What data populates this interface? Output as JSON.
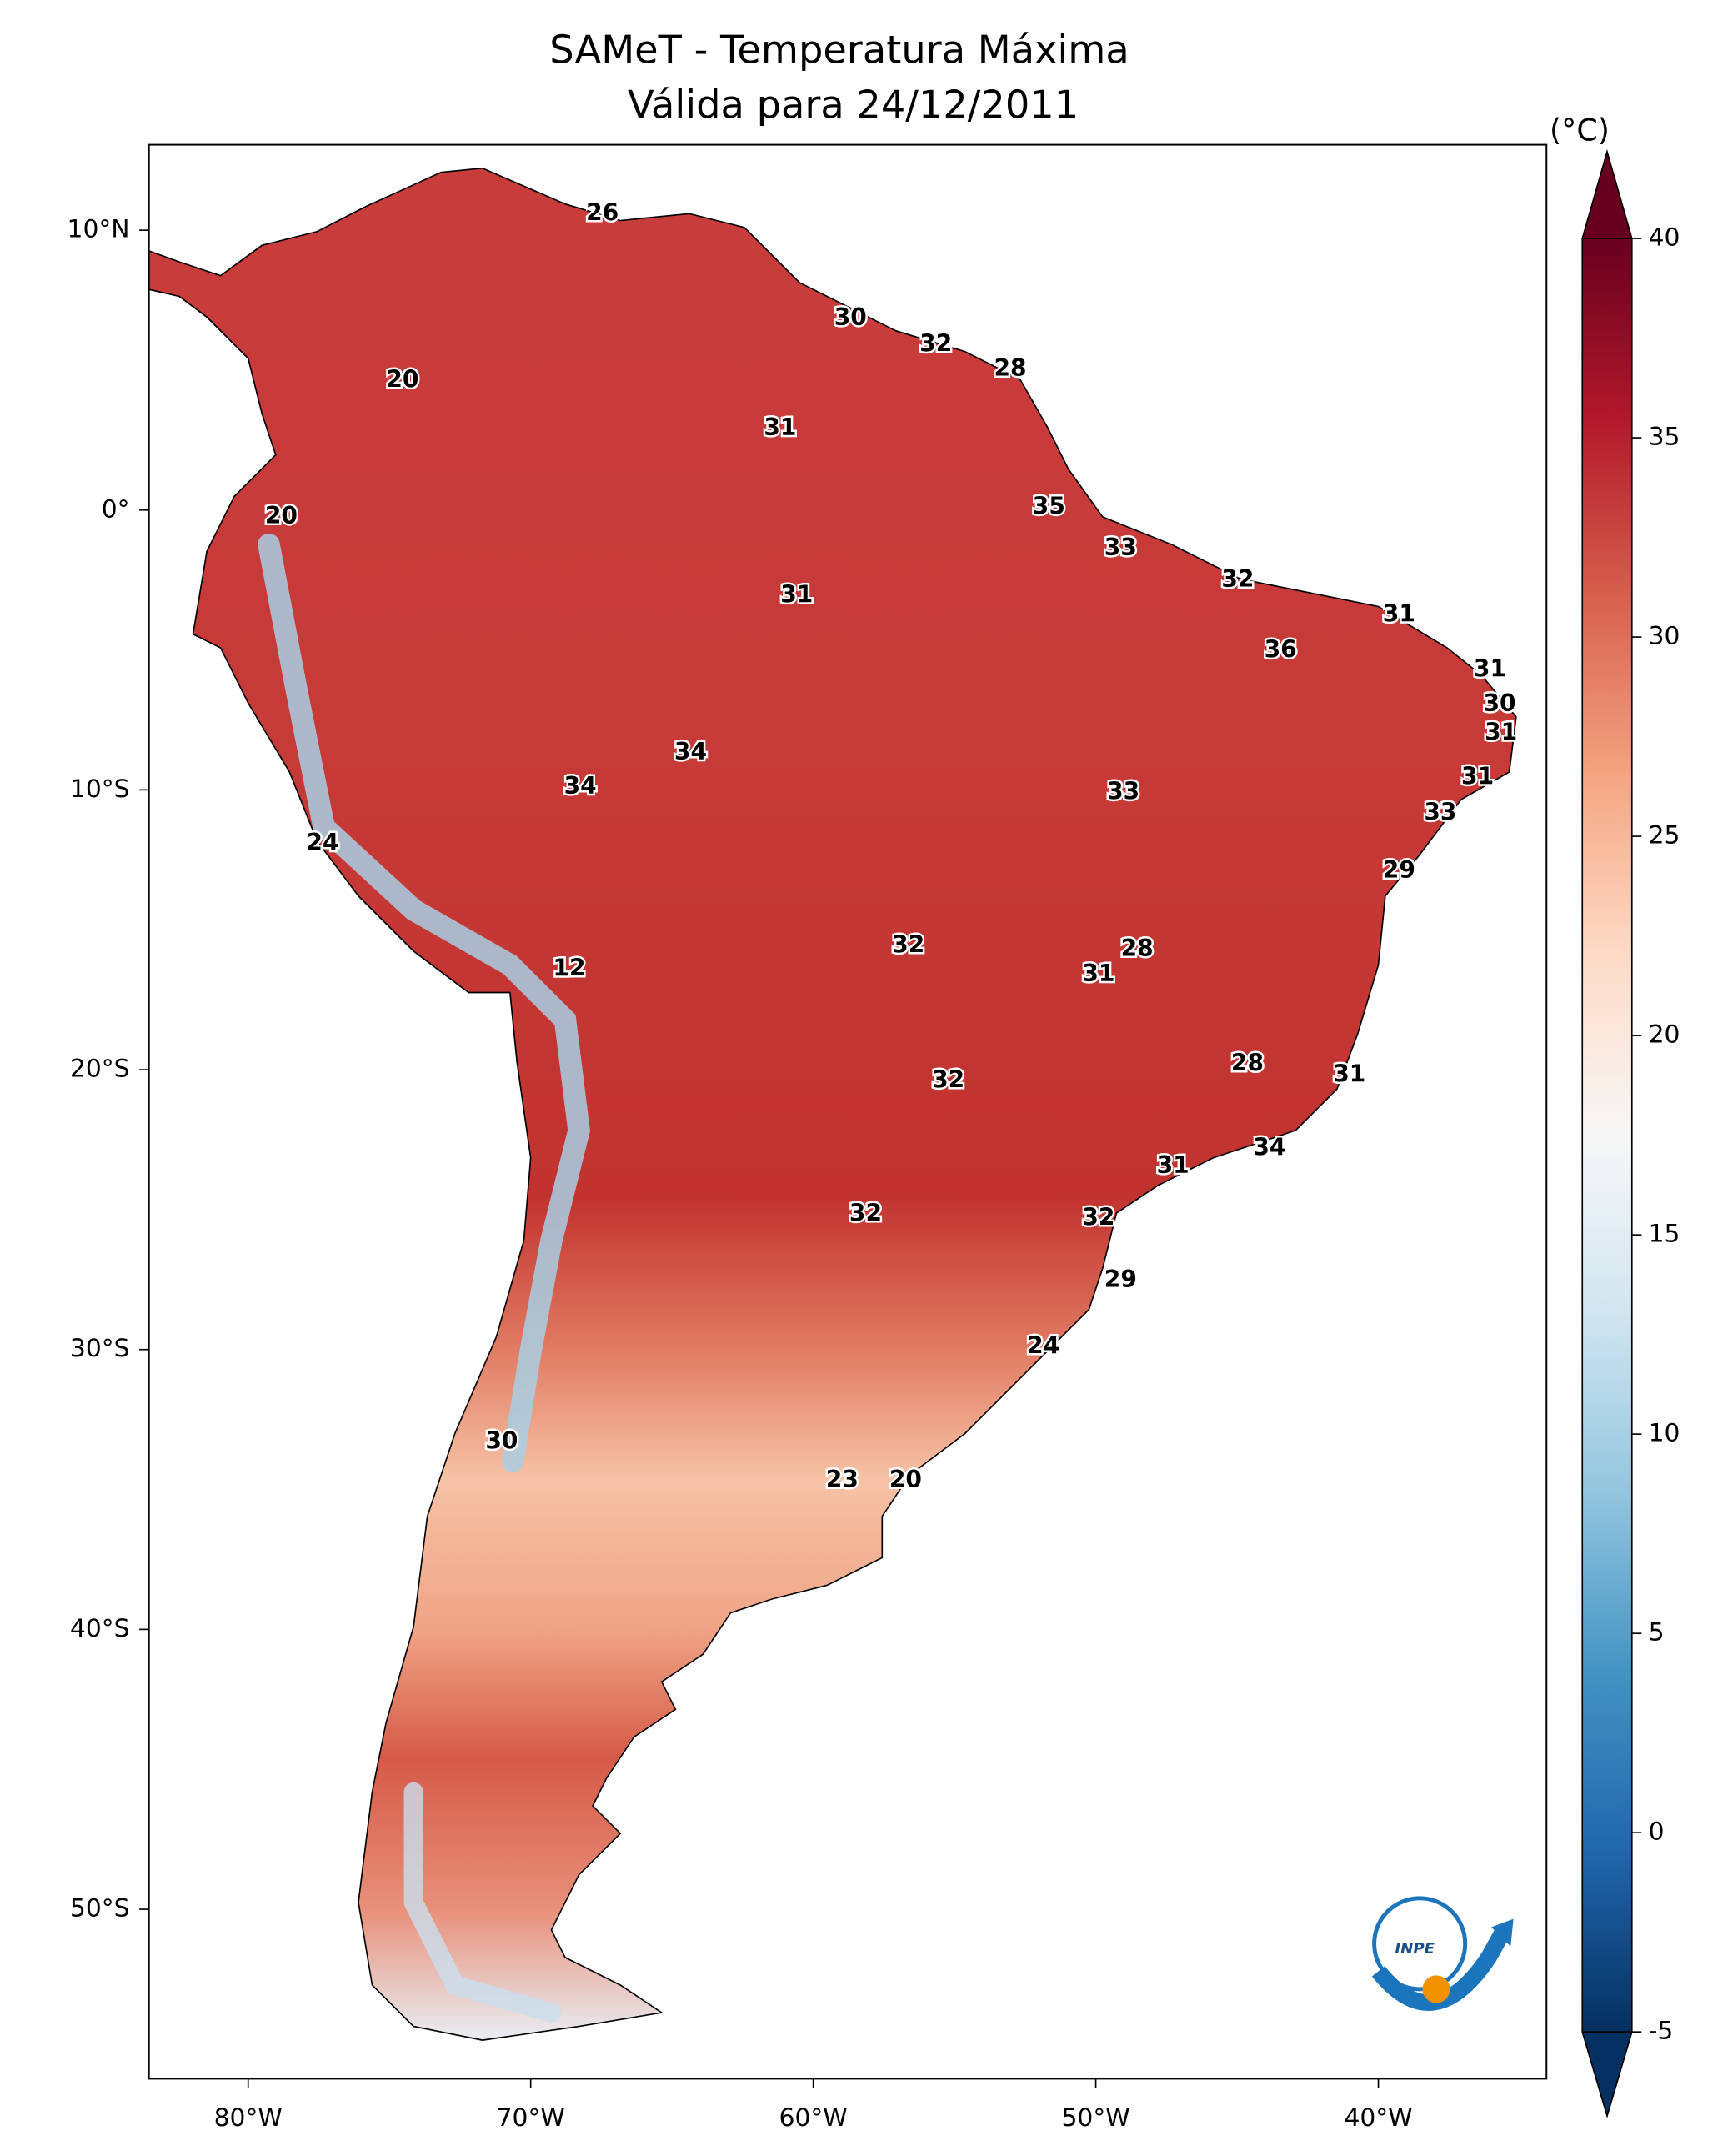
{
  "title": "SAMeT - Temperatura Máxima",
  "subtitle": "Válida para 24/12/2011",
  "colorbar": {
    "label": "(°C)",
    "range": [
      -5,
      40
    ],
    "ticks": [
      40,
      35,
      30,
      25,
      20,
      15,
      10,
      5,
      0,
      -5
    ]
  },
  "xticks": [
    {
      "value": -80,
      "label": "80°W"
    },
    {
      "value": -70,
      "label": "70°W"
    },
    {
      "value": -60,
      "label": "60°W"
    },
    {
      "value": -50,
      "label": "50°W"
    },
    {
      "value": -40,
      "label": "40°W"
    }
  ],
  "yticks": [
    {
      "value": 10,
      "label": "10°N"
    },
    {
      "value": 0,
      "label": "0°"
    },
    {
      "value": -10,
      "label": "10°S"
    },
    {
      "value": -20,
      "label": "20°S"
    },
    {
      "value": -30,
      "label": "30°S"
    },
    {
      "value": -40,
      "label": "40°S"
    },
    {
      "value": -50,
      "label": "50°S"
    }
  ],
  "temperature_labels": [
    26,
    30,
    32,
    28,
    20,
    31,
    20,
    35,
    33,
    32,
    31,
    31,
    36,
    31,
    30,
    31,
    34,
    34,
    33,
    31,
    33,
    24,
    29,
    32,
    28,
    31,
    12,
    28,
    31,
    32,
    34,
    31,
    32,
    32,
    29,
    24,
    30,
    23,
    20
  ],
  "logo_text": "INPE"
}
